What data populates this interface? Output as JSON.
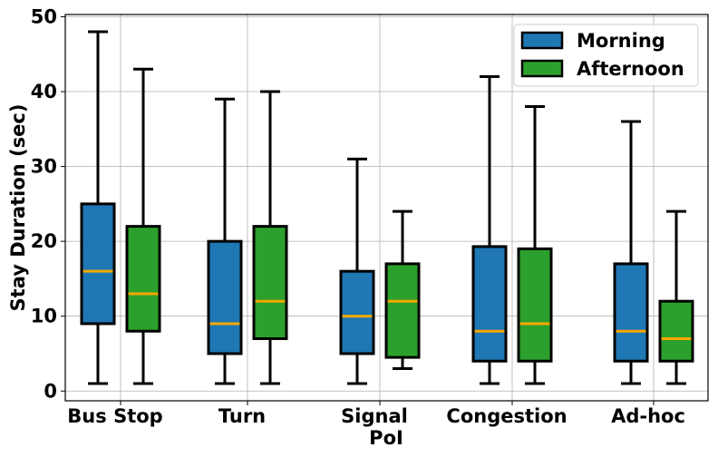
{
  "chart_data": {
    "type": "box",
    "categories": [
      "Bus Stop",
      "Turn",
      "Signal",
      "Congestion",
      "Ad-hoc"
    ],
    "xlabel": "PoI",
    "ylabel": "Stay Duration (sec)",
    "ylim": [
      -1.3,
      50.3
    ],
    "yticks": [
      0,
      10,
      20,
      30,
      40,
      50
    ],
    "grid": true,
    "legend_position": "top-right",
    "median_color": "#f5a800",
    "series": [
      {
        "name": "Morning",
        "color": "#1f77b4",
        "boxes": [
          {
            "whislo": 1,
            "q1": 9,
            "med": 16,
            "q3": 25,
            "whishi": 48
          },
          {
            "whislo": 1,
            "q1": 5,
            "med": 9,
            "q3": 20,
            "whishi": 39
          },
          {
            "whislo": 1,
            "q1": 5,
            "med": 10,
            "q3": 16,
            "whishi": 31
          },
          {
            "whislo": 1,
            "q1": 4,
            "med": 8,
            "q3": 19.3,
            "whishi": 42
          },
          {
            "whislo": 1,
            "q1": 4,
            "med": 8,
            "q3": 17,
            "whishi": 36
          }
        ]
      },
      {
        "name": "Afternoon",
        "color": "#2ca02c",
        "boxes": [
          {
            "whislo": 1,
            "q1": 8,
            "med": 13,
            "q3": 22,
            "whishi": 43
          },
          {
            "whislo": 1,
            "q1": 7,
            "med": 12,
            "q3": 22,
            "whishi": 40
          },
          {
            "whislo": 3,
            "q1": 4.5,
            "med": 12,
            "q3": 17,
            "whishi": 24
          },
          {
            "whislo": 1,
            "q1": 4,
            "med": 9,
            "q3": 19,
            "whishi": 38
          },
          {
            "whislo": 1,
            "q1": 4,
            "med": 7,
            "q3": 12,
            "whishi": 24
          }
        ]
      }
    ]
  }
}
